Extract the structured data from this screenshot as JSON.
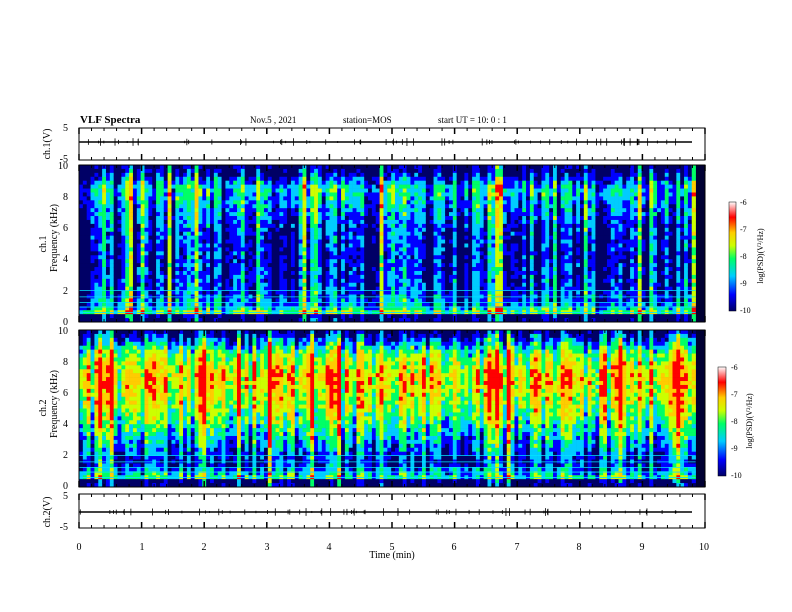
{
  "header": {
    "title": "VLF Spectra",
    "date": "Nov.5 , 2021",
    "station": "station=MOS",
    "start": "start UT = 10: 0 : 1"
  },
  "x_axis": {
    "label": "Time (min)",
    "ticks": [
      "0",
      "1",
      "2",
      "3",
      "4",
      "5",
      "6",
      "7",
      "8",
      "9",
      "10"
    ]
  },
  "waveform1": {
    "ylabel": "ch.1(V)",
    "ticks": [
      "5",
      "-5"
    ]
  },
  "spec1": {
    "ylabel_top": "ch.1",
    "ylabel": "Frequency (kHz)",
    "ticks": [
      "0",
      "2",
      "4",
      "6",
      "8",
      "10"
    ]
  },
  "spec2": {
    "ylabel_top": "ch.2",
    "ylabel": "Frequency (kHz)",
    "ticks": [
      "0",
      "2",
      "4",
      "6",
      "8",
      "10"
    ]
  },
  "waveform2": {
    "ylabel": "ch.2(V)",
    "ticks": [
      "5",
      "-5"
    ]
  },
  "colorbar1": {
    "label": "log(PSD)(V²/Hz)",
    "ticks": [
      "-6",
      "-7",
      "-8",
      "-9",
      "-10"
    ]
  },
  "colorbar2": {
    "label": "log(PSD)(V²/Hz)",
    "ticks": [
      "-6",
      "-7",
      "-8",
      "-9",
      "-10"
    ]
  },
  "colors": {
    "scale": [
      "#000066",
      "#0000ff",
      "#00ccff",
      "#00ff66",
      "#ccff00",
      "#ffcc00",
      "#ff0000",
      "#ffffff"
    ]
  },
  "chart_data": [
    {
      "type": "line",
      "panel": "ch.1(V)",
      "xlabel": "Time (min)",
      "ylabel": "ch.1(V)",
      "xlim": [
        0,
        10
      ],
      "ylim": [
        -5,
        5
      ],
      "x": [
        0,
        10
      ],
      "y": [
        0,
        0
      ]
    },
    {
      "type": "heatmap",
      "panel": "ch.1",
      "xlabel": "Time (min)",
      "ylabel": "Frequency (kHz)",
      "xlim": [
        0,
        9.85
      ],
      "ylim": [
        0,
        10
      ],
      "zlabel": "log(PSD)(V²/Hz)",
      "zlim": [
        -10,
        -6
      ],
      "freq_profile": [
        {
          "freq": 0.5,
          "level": -7.5
        },
        {
          "freq": 1.0,
          "level": -8.8
        },
        {
          "freq": 2.0,
          "level": -9.3
        },
        {
          "freq": 4.0,
          "level": -9.5
        },
        {
          "freq": 6.0,
          "level": -9.3
        },
        {
          "freq": 8.5,
          "level": -8.5
        },
        {
          "freq": 9.5,
          "level": -9.8
        },
        {
          "freq": 10.0,
          "level": -10
        }
      ]
    },
    {
      "type": "heatmap",
      "panel": "ch.2",
      "xlabel": "Time (min)",
      "ylabel": "Frequency (kHz)",
      "xlim": [
        0,
        9.85
      ],
      "ylim": [
        0,
        10
      ],
      "zlabel": "log(PSD)(V²/Hz)",
      "zlim": [
        -10,
        -6
      ],
      "freq_profile": [
        {
          "freq": 0.5,
          "level": -8.0
        },
        {
          "freq": 1.5,
          "level": -9.5
        },
        {
          "freq": 3.0,
          "level": -8.6
        },
        {
          "freq": 5.0,
          "level": -7.6
        },
        {
          "freq": 7.0,
          "level": -7.0
        },
        {
          "freq": 8.5,
          "level": -7.8
        },
        {
          "freq": 9.5,
          "level": -9.2
        },
        {
          "freq": 10.0,
          "level": -10
        }
      ]
    },
    {
      "type": "line",
      "panel": "ch.2(V)",
      "xlabel": "Time (min)",
      "ylabel": "ch.2(V)",
      "xlim": [
        0,
        10
      ],
      "ylim": [
        -5,
        5
      ],
      "x": [
        0,
        10
      ],
      "y": [
        0,
        0
      ]
    }
  ]
}
